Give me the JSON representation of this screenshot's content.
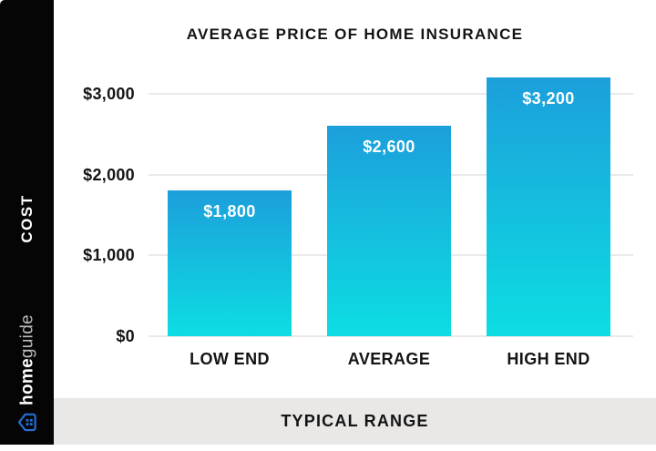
{
  "sidebar": {
    "axis_label": "COST",
    "brand": {
      "home": "home",
      "guide": "guide",
      "icon": "house-icon"
    }
  },
  "footer": {
    "label": "TYPICAL RANGE"
  },
  "chart_data": {
    "type": "bar",
    "title": "AVERAGE PRICE OF HOME INSURANCE",
    "categories": [
      "LOW END",
      "AVERAGE",
      "HIGH END"
    ],
    "values": [
      1800,
      2600,
      3200
    ],
    "value_labels": [
      "$1,800",
      "$2,600",
      "$3,200"
    ],
    "yticks": [
      0,
      1000,
      2000,
      3000
    ],
    "ytick_labels": [
      "$0",
      "$1,000",
      "$2,000",
      "$3,000"
    ],
    "ylabel": "COST",
    "xlabel": "TYPICAL RANGE",
    "ylim": [
      0,
      3400
    ],
    "grid": true,
    "legend": "none",
    "bar_gradient_top": "#1C9FDB",
    "bar_gradient_bottom": "#0DDDE2"
  },
  "colors": {
    "rail_background": "#050505",
    "panel_background": "#FFFFFF",
    "footer_background": "#E9E8E6",
    "gridline": "#E9E9E9",
    "text_dark": "#141414",
    "bar_label_text": "#FFFFFF",
    "brand_home": "#FFFFFF",
    "brand_guide": "#BDBDBD",
    "brand_icon_blue": "#2272D9"
  }
}
